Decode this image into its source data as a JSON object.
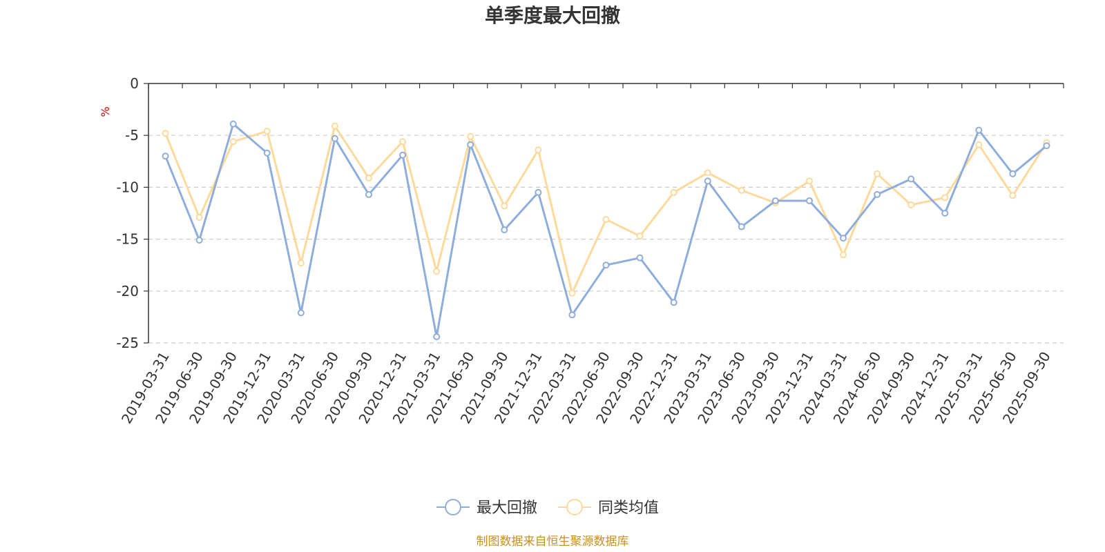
{
  "chart_data": {
    "type": "line",
    "title": "单季度最大回撤",
    "ylabel": "%",
    "xlabel": "",
    "ylim": [
      -25,
      0
    ],
    "yticks": [
      0,
      -5,
      -10,
      -15,
      -20,
      -25
    ],
    "ytick_labels": [
      "0",
      "-5",
      "-10",
      "-15",
      "-20",
      "-25"
    ],
    "grid": "horizontal dashed",
    "legend_position": "bottom-center",
    "categories": [
      "2019-03-31",
      "2019-06-30",
      "2019-09-30",
      "2019-12-31",
      "2020-03-31",
      "2020-06-30",
      "2020-09-30",
      "2020-12-31",
      "2021-03-31",
      "2021-06-30",
      "2021-09-30",
      "2021-12-31",
      "2022-03-31",
      "2022-06-30",
      "2022-09-30",
      "2022-12-31",
      "2023-03-31",
      "2023-06-30",
      "2023-09-30",
      "2023-12-31",
      "2024-03-31",
      "2024-06-30",
      "2024-09-30",
      "2024-12-31",
      "2025-03-31",
      "2025-06-30",
      "2025-09-30"
    ],
    "series": [
      {
        "name": "最大回撤",
        "color": "#8eaddb",
        "values": [
          -7.0,
          -15.1,
          -3.9,
          -6.7,
          -22.1,
          -5.3,
          -10.7,
          -6.9,
          -24.4,
          -5.9,
          -14.1,
          -10.5,
          -22.3,
          -17.5,
          -16.8,
          -21.1,
          -9.4,
          -13.8,
          -11.3,
          -11.3,
          -14.9,
          -10.7,
          -9.2,
          -12.5,
          -4.5,
          -8.7,
          -6.0
        ]
      },
      {
        "name": "同类均值",
        "color": "#fdd99b",
        "values": [
          -4.8,
          -12.9,
          -5.6,
          -4.6,
          -17.3,
          -4.1,
          -9.1,
          -5.6,
          -18.1,
          -5.1,
          -11.8,
          -6.4,
          -20.2,
          -13.1,
          -14.7,
          -10.5,
          -8.6,
          -10.3,
          -11.5,
          -9.4,
          -16.5,
          -8.7,
          -11.7,
          -11.0,
          -5.9,
          -10.8,
          -5.7
        ]
      }
    ],
    "source_note": "制图数据来自恒生聚源数据库"
  }
}
